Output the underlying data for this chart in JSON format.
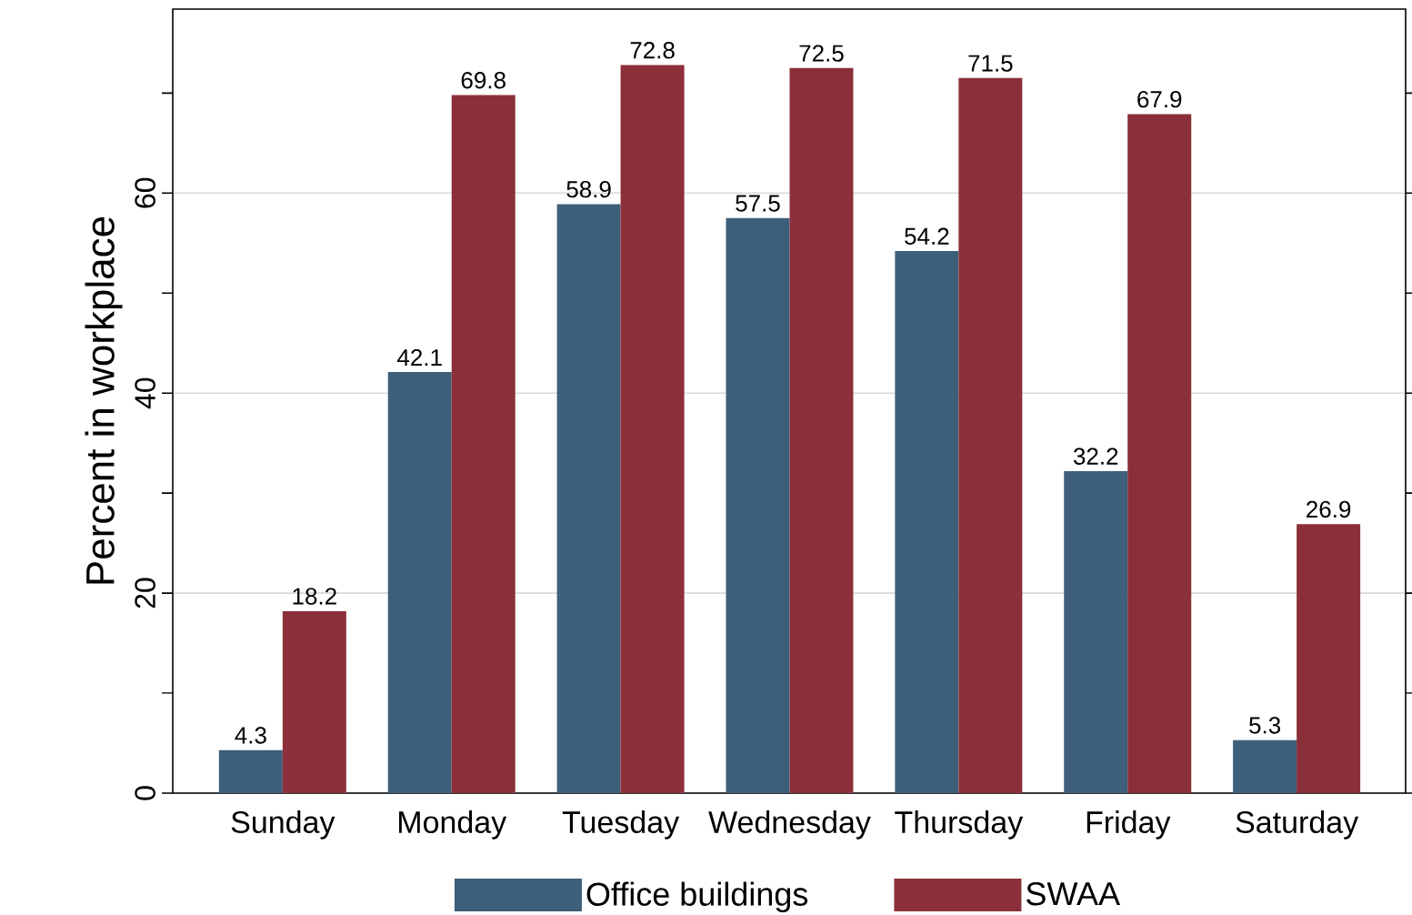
{
  "chart_data": {
    "type": "bar",
    "ylabel": "Percent in workplace",
    "categories": [
      "Sunday",
      "Monday",
      "Tuesday",
      "Wednesday",
      "Thursday",
      "Friday",
      "Saturday"
    ],
    "series": [
      {
        "name": "Office buildings",
        "color": "#3e5f7a",
        "values": [
          4.3,
          42.1,
          58.9,
          57.5,
          54.2,
          32.2,
          5.3
        ]
      },
      {
        "name": "SWAA",
        "color": "#8b2f3a",
        "values": [
          18.2,
          69.8,
          72.8,
          72.5,
          71.5,
          67.9,
          26.9
        ]
      }
    ],
    "ylim": [
      0,
      78.4
    ],
    "yticks": [
      0,
      {
        "value": 10,
        "label": null
      },
      20,
      {
        "value": 30,
        "label": null
      },
      40,
      {
        "value": 50,
        "label": null
      },
      60,
      {
        "value": 70,
        "label": null
      }
    ],
    "grid": "y",
    "legend": "bottom",
    "data_labels": true
  }
}
